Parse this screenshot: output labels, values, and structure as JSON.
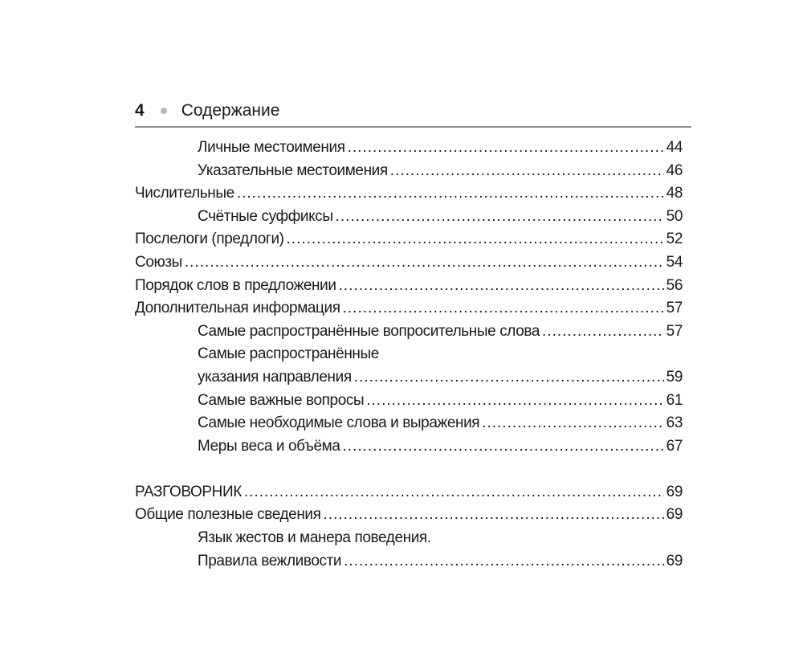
{
  "header": {
    "page_number": "4",
    "title": "Содержание"
  },
  "entries": [
    {
      "title": "Личные местоимения",
      "page": "44",
      "level": 2
    },
    {
      "title": "Указательные местоимения",
      "page": "46",
      "level": 2
    },
    {
      "title": "Числительные",
      "page": "48",
      "level": 1
    },
    {
      "title": "Счётные суффиксы",
      "page": "50",
      "level": 2
    },
    {
      "title": "Послелоги (предлоги)",
      "page": "52",
      "level": 1
    },
    {
      "title": "Союзы",
      "page": "54",
      "level": 1
    },
    {
      "title": "Порядок слов в предложении",
      "page": "56",
      "level": 1
    },
    {
      "title": "Дополнительная информация",
      "page": "57",
      "level": 1
    },
    {
      "title": "Самые распространённые вопросительные слова",
      "page": "57",
      "level": 2
    },
    {
      "title": "Самые распространённые",
      "page": null,
      "level": 2
    },
    {
      "title": "указания направления",
      "page": "59",
      "level": 2
    },
    {
      "title": "Самые важные вопросы",
      "page": "61",
      "level": 2
    },
    {
      "title": "Самые необходимые слова и выражения",
      "page": "63",
      "level": 2
    },
    {
      "title": "Меры веса и объёма",
      "page": "67",
      "level": 2
    },
    {
      "title": "РАЗГОВОРНИК",
      "page": "69",
      "level": 1,
      "gap": true
    },
    {
      "title": "Общие полезные сведения",
      "page": "69",
      "level": 1
    },
    {
      "title": "Язык жестов и манера поведения.",
      "page": null,
      "level": 2
    },
    {
      "title": "Правила вежливости",
      "page": "69",
      "level": 2
    }
  ]
}
